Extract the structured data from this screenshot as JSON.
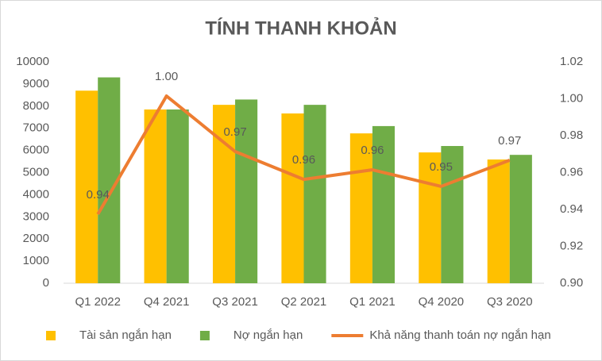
{
  "chart_data": {
    "type": "bar",
    "title": "TÍNH THANH KHOẢN",
    "categories": [
      "Q1 2022",
      "Q4 2021",
      "Q3 2021",
      "Q2 2021",
      "Q1 2021",
      "Q4 2020",
      "Q3 2020"
    ],
    "series": [
      {
        "name": "Tài sản ngắn hạn",
        "color": "#FFC000",
        "values": [
          8700,
          7850,
          8060,
          7670,
          6770,
          5910,
          5590
        ]
      },
      {
        "name": "Nợ ngắn hạn",
        "color": "#70AD47",
        "values": [
          9300,
          7850,
          8300,
          8060,
          7100,
          6200,
          5800
        ]
      },
      {
        "name": "Khả năng thanh toán nợ ngắn hạn",
        "color": "#ED7D31",
        "type": "line",
        "axis": "y2",
        "values": [
          0.9374,
          1.0015,
          0.9714,
          0.9563,
          0.9615,
          0.9525,
          0.9667
        ],
        "value_labels": [
          "0.94",
          "1.00",
          "0.97",
          "0.96",
          "0.96",
          "0.95",
          "0.97"
        ]
      }
    ],
    "ylim": [
      0,
      10000
    ],
    "yticks": [
      0,
      1000,
      2000,
      3000,
      4000,
      5000,
      6000,
      7000,
      8000,
      9000,
      10000
    ],
    "y2lim": [
      0.9,
      1.02
    ],
    "y2ticks": [
      {
        "value": 0.9,
        "label": "0.90"
      },
      0.92,
      0.94,
      0.96,
      0.98,
      {
        "value": 1,
        "label": "1.00"
      },
      1.02
    ],
    "grid": false,
    "legend": "bottom"
  }
}
